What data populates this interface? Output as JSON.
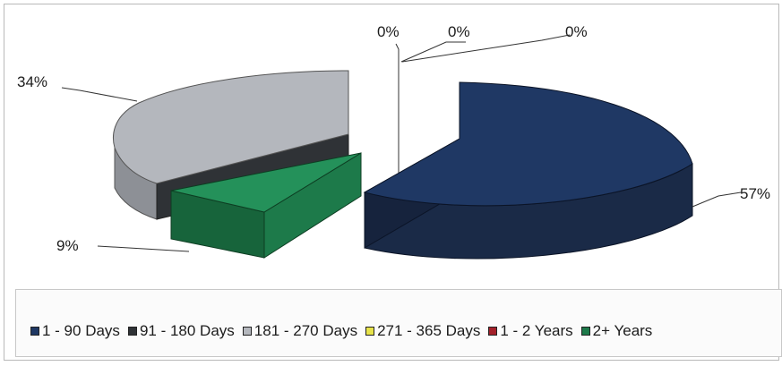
{
  "chart_data": {
    "type": "pie",
    "title": "",
    "slices": [
      {
        "label": "1 - 90 Days",
        "value": 57,
        "display": "57%",
        "color": "#1f3864"
      },
      {
        "label": "91 - 180 Days",
        "value": 0,
        "display": "0%",
        "color": "#2f3236"
      },
      {
        "label": "181 - 270 Days",
        "value": 34,
        "display": "34%",
        "color": "#b4b7bd"
      },
      {
        "label": "271 - 365 Days",
        "value": 0,
        "display": "0%",
        "color": "#e7e34a"
      },
      {
        "label": "1 - 2 Years",
        "value": 0,
        "display": "0%",
        "color": "#a3202a"
      },
      {
        "label": "2+ Years",
        "value": 9,
        "display": "9%",
        "color": "#1d7a4a"
      }
    ],
    "legend_position": "bottom",
    "three_d": true
  }
}
